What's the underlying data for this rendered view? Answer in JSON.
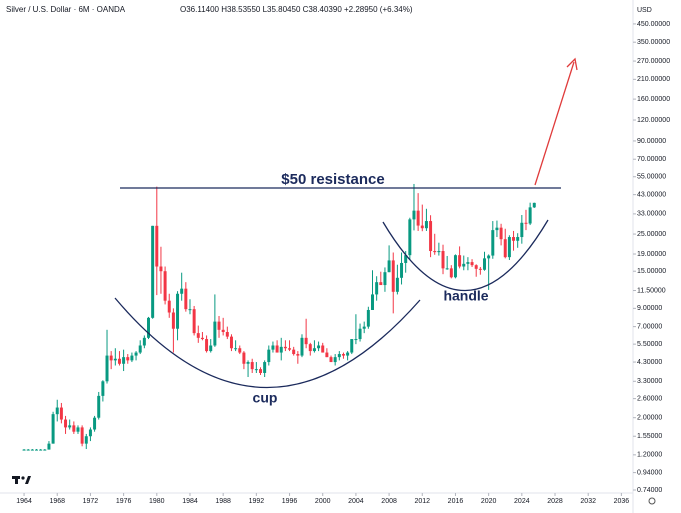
{
  "chart_data": {
    "type": "candlestick",
    "title": "Silver / U.S. Dollar · 6M · OANDA",
    "subtitle": "O36.11400 H38.53550 L35.80450 C38.40390 +2.28950 (+6.34%)",
    "y_unit": "USD",
    "annotations": [
      "$50 resistance",
      "cup",
      "handle"
    ],
    "log_scale": true,
    "grid": false,
    "up_color": "#089981",
    "down_color": "#f23645",
    "xlim": [
      1961.1,
      2037.4
    ],
    "ylim": [
      0.71,
      545
    ],
    "xticks": [
      1964,
      1968,
      1972,
      1976,
      1980,
      1984,
      1988,
      1992,
      1996,
      2000,
      2004,
      2008,
      2012,
      2016,
      2020,
      2024,
      2028,
      2032,
      2036
    ],
    "yticks": [
      {
        "value": 450,
        "label": "450.00000"
      },
      {
        "value": 350,
        "label": "350.00000"
      },
      {
        "value": 270,
        "label": "270.00000"
      },
      {
        "value": 210,
        "label": "210.00000"
      },
      {
        "value": 160,
        "label": "160.00000"
      },
      {
        "value": 120,
        "label": "120.00000"
      },
      {
        "value": 90,
        "label": "90.00000"
      },
      {
        "value": 70,
        "label": "70.00000"
      },
      {
        "value": 55,
        "label": "55.00000"
      },
      {
        "value": 43,
        "label": "43.00000"
      },
      {
        "value": 33,
        "label": "33.00000"
      },
      {
        "value": 25,
        "label": "25.00000"
      },
      {
        "value": 19,
        "label": "19.00000"
      },
      {
        "value": 15,
        "label": "15.00000"
      },
      {
        "value": 11.5,
        "label": "11.50000"
      },
      {
        "value": 9,
        "label": "9.00000"
      },
      {
        "value": 7,
        "label": "7.00000"
      },
      {
        "value": 5.5,
        "label": "5.50000"
      },
      {
        "value": 4.3,
        "label": "4.30000"
      },
      {
        "value": 3.3,
        "label": "3.30000"
      },
      {
        "value": 2.6,
        "label": "2.60000"
      },
      {
        "value": 2,
        "label": "2.00000"
      },
      {
        "value": 1.55,
        "label": "1.55000"
      },
      {
        "value": 1.2,
        "label": "1.20000"
      },
      {
        "value": 0.94,
        "label": "0.94000"
      },
      {
        "value": 0.74,
        "label": "0.74000"
      }
    ],
    "x": [
      1964,
      1964.5,
      1965,
      1965.5,
      1966,
      1966.5,
      1967,
      1967.5,
      1968,
      1968.5,
      1969,
      1969.5,
      1970,
      1970.5,
      1971,
      1971.5,
      1972,
      1972.5,
      1973,
      1973.5,
      1974,
      1974.5,
      1975,
      1975.5,
      1976,
      1976.5,
      1977,
      1977.5,
      1978,
      1978.5,
      1979,
      1979.5,
      1980,
      1980.5,
      1981,
      1981.5,
      1982,
      1982.5,
      1983,
      1983.5,
      1984,
      1984.5,
      1985,
      1985.5,
      1986,
      1986.5,
      1987,
      1987.5,
      1988,
      1988.5,
      1989,
      1989.5,
      1990,
      1990.5,
      1991,
      1991.5,
      1992,
      1992.5,
      1993,
      1993.5,
      1994,
      1994.5,
      1995,
      1995.5,
      1996,
      1996.5,
      1997,
      1997.5,
      1998,
      1998.5,
      1999,
      1999.5,
      2000,
      2000.5,
      2001,
      2001.5,
      2002,
      2002.5,
      2003,
      2003.5,
      2004,
      2004.5,
      2005,
      2005.5,
      2006,
      2006.5,
      2007,
      2007.5,
      2008,
      2008.5,
      2009,
      2009.5,
      2010,
      2010.5,
      2011,
      2011.5,
      2012,
      2012.5,
      2013,
      2013.5,
      2014,
      2014.5,
      2015,
      2015.5,
      2016,
      2016.5,
      2017,
      2017.5,
      2018,
      2018.5,
      2019,
      2019.5,
      2020,
      2020.5,
      2021,
      2021.5,
      2022,
      2022.5,
      2023,
      2023.5,
      2024,
      2024.5,
      2025,
      2025.5
    ],
    "open": [
      1.29,
      1.29,
      1.29,
      1.29,
      1.29,
      1.29,
      1.29,
      1.4,
      2.1,
      2.3,
      1.95,
      1.75,
      1.8,
      1.65,
      1.75,
      1.4,
      1.55,
      1.7,
      2.0,
      2.7,
      3.3,
      4.7,
      4.4,
      4.5,
      4.2,
      4.6,
      4.4,
      4.7,
      4.9,
      5.4,
      6.0,
      7.9,
      28.0,
      16.0,
      15.0,
      10.0,
      8.5,
      6.8,
      11.0,
      11.8,
      8.9,
      8.9,
      6.4,
      6.0,
      5.9,
      5.0,
      5.4,
      7.5,
      6.7,
      6.5,
      6.1,
      5.2,
      5.2,
      4.9,
      4.2,
      4.3,
      3.9,
      3.9,
      3.7,
      4.3,
      5.1,
      5.4,
      4.9,
      5.3,
      5.2,
      5.1,
      4.8,
      4.7,
      6.0,
      5.5,
      5.0,
      5.2,
      5.4,
      4.9,
      4.6,
      4.3,
      4.6,
      4.8,
      4.7,
      4.9,
      5.9,
      5.9,
      6.8,
      7.0,
      8.8,
      10.9,
      12.9,
      12.4,
      14.8,
      17.4,
      11.3,
      13.7,
      16.8,
      18.7,
      30.6,
      34.5,
      28.1,
      27.1,
      29.9,
      19.8,
      19.5,
      19.8,
      15.6,
      15.6,
      13.8,
      18.7,
      16.0,
      16.6,
      17.0,
      16.3,
      15.5,
      15.3,
      17.9,
      18.6,
      26.4,
      27.3,
      23.3,
      18.2,
      24.0,
      22.8,
      24.0,
      29.2,
      28.9,
      36.1
    ],
    "high": [
      1.3,
      1.3,
      1.3,
      1.3,
      1.3,
      1.3,
      1.45,
      2.17,
      2.56,
      2.45,
      2.05,
      1.95,
      1.9,
      1.8,
      1.8,
      1.6,
      1.75,
      2.05,
      2.85,
      3.35,
      6.7,
      5.0,
      5.2,
      5.0,
      5.1,
      4.8,
      4.9,
      5.0,
      5.8,
      6.2,
      8.0,
      28.0,
      48.0,
      21.0,
      16.0,
      11.0,
      9.0,
      11.4,
      14.7,
      12.9,
      10.2,
      9.3,
      7.1,
      6.5,
      6.2,
      5.9,
      10.9,
      8.1,
      7.9,
      7.0,
      6.3,
      5.8,
      5.4,
      5.0,
      4.4,
      4.5,
      4.3,
      4.0,
      4.4,
      5.4,
      5.7,
      5.8,
      6.0,
      5.8,
      5.8,
      5.3,
      5.0,
      6.3,
      7.8,
      5.6,
      5.8,
      5.7,
      5.6,
      5.2,
      4.7,
      4.8,
      5.0,
      4.9,
      5.0,
      5.9,
      8.3,
      7.3,
      7.5,
      9.2,
      15.2,
      14.0,
      14.9,
      15.8,
      21.4,
      19.4,
      16.4,
      19.4,
      19.8,
      31.3,
      49.8,
      43.9,
      37.5,
      35.4,
      32.4,
      25.1,
      22.2,
      21.6,
      18.5,
      16.3,
      18.9,
      21.1,
      18.6,
      18.2,
      17.7,
      16.5,
      15.9,
      19.6,
      18.9,
      29.9,
      30.1,
      28.8,
      26.9,
      24.6,
      26.1,
      25.3,
      32.5,
      34.9,
      38.5,
      38.5
    ],
    "low": [
      1.28,
      1.28,
      1.28,
      1.28,
      1.28,
      1.28,
      1.29,
      1.4,
      1.9,
      1.85,
      1.6,
      1.7,
      1.6,
      1.6,
      1.35,
      1.3,
      1.45,
      1.65,
      1.95,
      2.5,
      3.2,
      3.9,
      4.1,
      4.1,
      3.8,
      4.2,
      4.3,
      4.4,
      4.8,
      5.2,
      5.9,
      7.8,
      10.8,
      11.0,
      9.5,
      7.9,
      4.9,
      5.8,
      10.0,
      8.6,
      8.3,
      6.2,
      5.6,
      5.8,
      4.9,
      4.9,
      5.3,
      6.0,
      6.2,
      5.9,
      5.0,
      5.0,
      4.8,
      3.9,
      3.5,
      3.7,
      3.7,
      3.6,
      3.5,
      4.1,
      4.9,
      4.9,
      4.4,
      5.0,
      5.0,
      4.7,
      4.2,
      4.6,
      5.2,
      4.7,
      4.9,
      5.0,
      4.9,
      4.6,
      4.3,
      4.1,
      4.4,
      4.5,
      4.4,
      4.8,
      5.5,
      5.7,
      6.4,
      6.8,
      8.8,
      10.0,
      12.5,
      11.3,
      14.8,
      8.4,
      10.9,
      12.5,
      14.7,
      17.6,
      26.3,
      26.1,
      26.0,
      26.1,
      18.2,
      18.8,
      18.6,
      14.4,
      15.3,
      13.6,
      13.6,
      15.6,
      15.2,
      15.2,
      15.9,
      13.9,
      14.3,
      15.1,
      11.6,
      17.8,
      24.0,
      21.4,
      17.9,
      17.5,
      19.9,
      20.7,
      21.9,
      26.4,
      28.3,
      35.8
    ],
    "close": [
      1.29,
      1.29,
      1.29,
      1.29,
      1.29,
      1.29,
      1.4,
      2.1,
      2.3,
      1.95,
      1.75,
      1.8,
      1.65,
      1.75,
      1.4,
      1.55,
      1.7,
      2.0,
      2.7,
      3.3,
      4.7,
      4.4,
      4.5,
      4.2,
      4.6,
      4.4,
      4.7,
      4.9,
      5.4,
      6.0,
      7.9,
      28.0,
      16.0,
      15.0,
      10.0,
      8.5,
      6.8,
      11.0,
      11.8,
      8.9,
      8.9,
      6.4,
      6.0,
      5.9,
      5.0,
      5.4,
      7.5,
      6.7,
      6.5,
      6.1,
      5.2,
      5.2,
      4.9,
      4.2,
      4.3,
      3.9,
      3.9,
      3.7,
      4.3,
      5.1,
      5.4,
      4.9,
      5.3,
      5.2,
      5.1,
      4.8,
      4.7,
      6.0,
      5.5,
      5.0,
      5.2,
      5.4,
      4.9,
      4.6,
      4.3,
      4.6,
      4.8,
      4.7,
      4.9,
      5.9,
      5.9,
      6.8,
      7.0,
      8.8,
      10.9,
      12.9,
      12.4,
      14.8,
      17.4,
      11.3,
      13.7,
      16.8,
      18.7,
      30.6,
      34.5,
      28.1,
      27.1,
      29.9,
      19.8,
      19.5,
      19.8,
      15.6,
      15.6,
      13.8,
      18.7,
      16.0,
      16.6,
      17.0,
      16.3,
      15.5,
      15.3,
      17.9,
      18.6,
      26.4,
      27.3,
      23.3,
      18.2,
      24.0,
      22.8,
      24.0,
      29.2,
      28.9,
      36.1,
      38.4
    ]
  }
}
